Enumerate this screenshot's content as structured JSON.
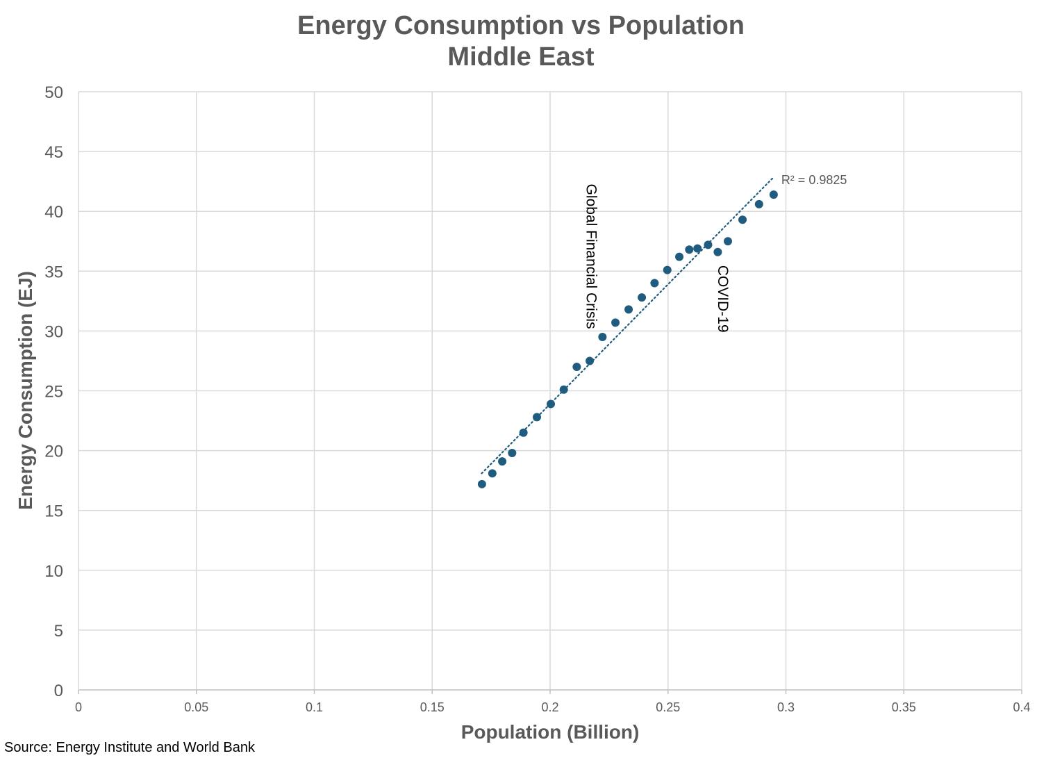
{
  "chart_data": {
    "type": "scatter",
    "title": "Energy Consumption vs Population",
    "subtitle": "Middle East",
    "xlabel": "Population (Billion)",
    "ylabel": "Energy Consumption (EJ)",
    "xlim": [
      0,
      0.4
    ],
    "ylim": [
      0,
      50
    ],
    "x_ticks": [
      0,
      0.05,
      0.1,
      0.15,
      0.2,
      0.25,
      0.3,
      0.35,
      0.4
    ],
    "x_tick_labels": [
      "0",
      "0.05",
      "0.1",
      "0.15",
      "0.2",
      "0.25",
      "0.3",
      "0.35",
      "0.4"
    ],
    "y_ticks": [
      0,
      5,
      10,
      15,
      20,
      25,
      30,
      35,
      40,
      45,
      50
    ],
    "y_tick_labels": [
      "0",
      "5",
      "10",
      "15",
      "20",
      "25",
      "30",
      "35",
      "40",
      "45",
      "50"
    ],
    "grid": true,
    "marker_color": "#1f5c80",
    "trendline_color": "#1f5c80",
    "series": [
      {
        "name": "Middle East",
        "x": [
          0.1711,
          0.1755,
          0.1797,
          0.1839,
          0.1887,
          0.1944,
          0.2003,
          0.2058,
          0.2113,
          0.2168,
          0.2222,
          0.2277,
          0.2333,
          0.2389,
          0.2443,
          0.2497,
          0.2548,
          0.259,
          0.2625,
          0.267,
          0.2711,
          0.2754,
          0.2816,
          0.2886,
          0.2948
        ],
        "y": [
          17.2,
          18.1,
          19.1,
          19.8,
          21.5,
          22.8,
          23.9,
          25.1,
          27.0,
          27.5,
          29.5,
          30.7,
          31.8,
          32.8,
          34.0,
          35.1,
          36.2,
          36.8,
          36.9,
          37.2,
          36.6,
          37.5,
          39.3,
          40.6,
          41.4
        ]
      }
    ],
    "trendline": {
      "type": "linear",
      "style": "dotted",
      "x_start": 0.171,
      "y_start": 18.1,
      "x_end": 0.2945,
      "y_end": 42.8,
      "label": "R² = 0.9825"
    },
    "annotations": [
      {
        "text": "Global Financial Crisis",
        "x": 0.2155,
        "y": 42.3,
        "orientation": "vertical"
      },
      {
        "text": "COVID-19",
        "x": 0.2713,
        "y": 35.5,
        "orientation": "vertical"
      }
    ]
  },
  "source": "Source: Energy Institute and World Bank"
}
